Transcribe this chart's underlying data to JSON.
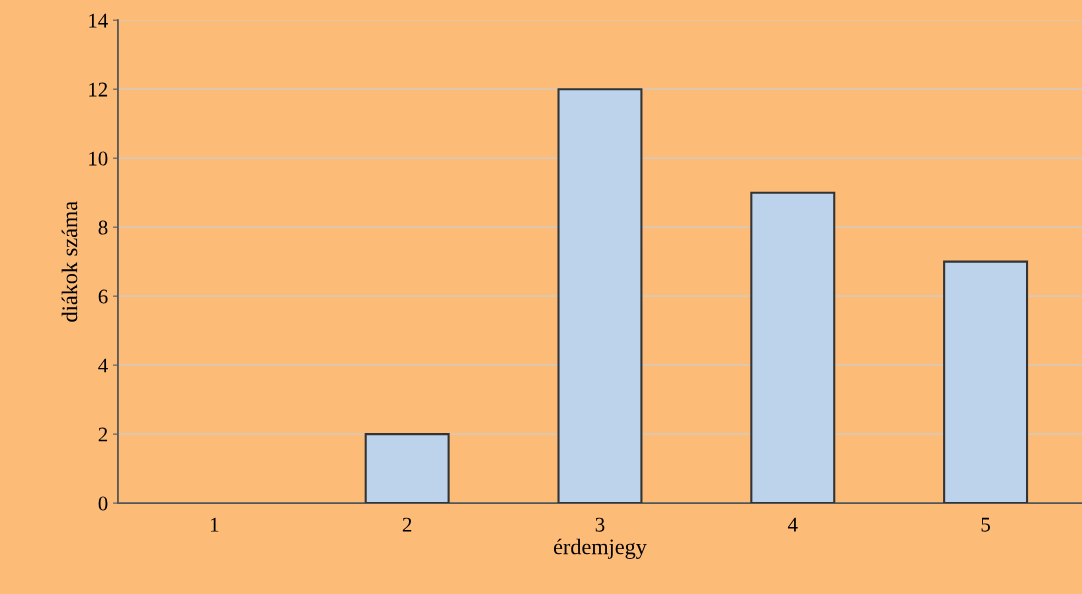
{
  "chart_data": {
    "type": "bar",
    "xlabel": "érdemjegy",
    "ylabel": "diákok száma",
    "categories": [
      "1",
      "2",
      "3",
      "4",
      "5"
    ],
    "values": [
      0,
      2,
      12,
      9,
      7
    ],
    "color": "#bdd3ec",
    "ylim": [
      0,
      14
    ],
    "yticks": [
      0,
      2,
      4,
      6,
      8,
      10,
      12,
      14
    ],
    "grid": "y",
    "legend": false
  }
}
